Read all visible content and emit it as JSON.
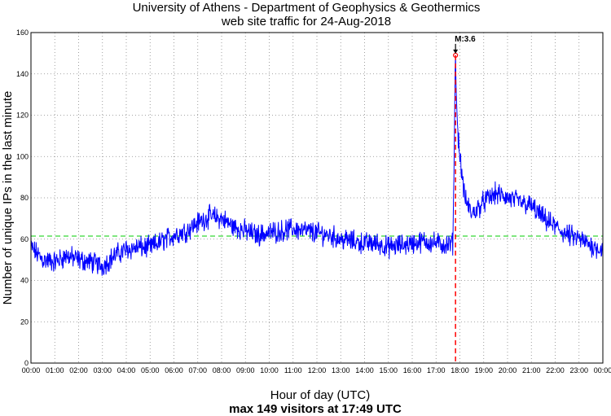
{
  "chart_data": {
    "type": "line",
    "title": "University of Athens - Department of Geophysics & Geothermics",
    "subtitle": "web site traffic for 24-Aug-2018",
    "xlabel": "Hour of day (UTC)",
    "ylabel": "Number of unique IPs in the last minute",
    "footer": "max 149 visitors at 17:49 UTC",
    "x_ticks": [
      "00:00",
      "01:00",
      "02:00",
      "03:00",
      "04:00",
      "05:00",
      "06:00",
      "07:00",
      "08:00",
      "09:00",
      "10:00",
      "11:00",
      "12:00",
      "13:00",
      "14:00",
      "15:00",
      "16:00",
      "17:00",
      "18:00",
      "19:00",
      "20:00",
      "21:00",
      "22:00",
      "23:00",
      "00:00"
    ],
    "y_ticks": [
      0,
      20,
      40,
      60,
      80,
      100,
      120,
      140,
      160
    ],
    "xlim_hours": [
      0,
      24
    ],
    "ylim": [
      0,
      160
    ],
    "grid": true,
    "series": [
      {
        "color": "#0000ff",
        "x_hours": [
          0,
          0.5,
          1,
          1.5,
          2,
          2.5,
          3,
          3.5,
          4,
          4.5,
          5,
          5.5,
          6,
          6.5,
          7,
          7.5,
          8,
          8.5,
          9,
          9.5,
          10,
          10.5,
          11,
          11.5,
          12,
          12.5,
          13,
          13.5,
          14,
          14.5,
          15,
          15.5,
          16,
          16.5,
          17,
          17.5,
          17.7,
          17.75,
          17.8,
          17.817,
          17.85,
          17.9,
          18,
          18.2,
          18.5,
          19,
          19.5,
          20,
          20.5,
          21,
          21.5,
          22,
          22.5,
          23,
          23.5,
          24
        ],
        "values": [
          56,
          50,
          49,
          52,
          50,
          49,
          47,
          52,
          55,
          56,
          56,
          59,
          62,
          64,
          68,
          71,
          70,
          66,
          64,
          62,
          63,
          64,
          65,
          64,
          63,
          62,
          60,
          59,
          58,
          58,
          56,
          57,
          58,
          59,
          58,
          57,
          58,
          90,
          140,
          149,
          130,
          115,
          100,
          80,
          72,
          78,
          82,
          80,
          78,
          76,
          70,
          66,
          62,
          60,
          57,
          55
        ]
      }
    ],
    "reference_line": {
      "value": 61.5,
      "color": "#00cc00",
      "style": "dashed"
    },
    "event_marker": {
      "x_hours": 17.817,
      "label": "M:3.6",
      "color": "#ff0000",
      "style": "dashed",
      "peak_value": 149
    }
  }
}
